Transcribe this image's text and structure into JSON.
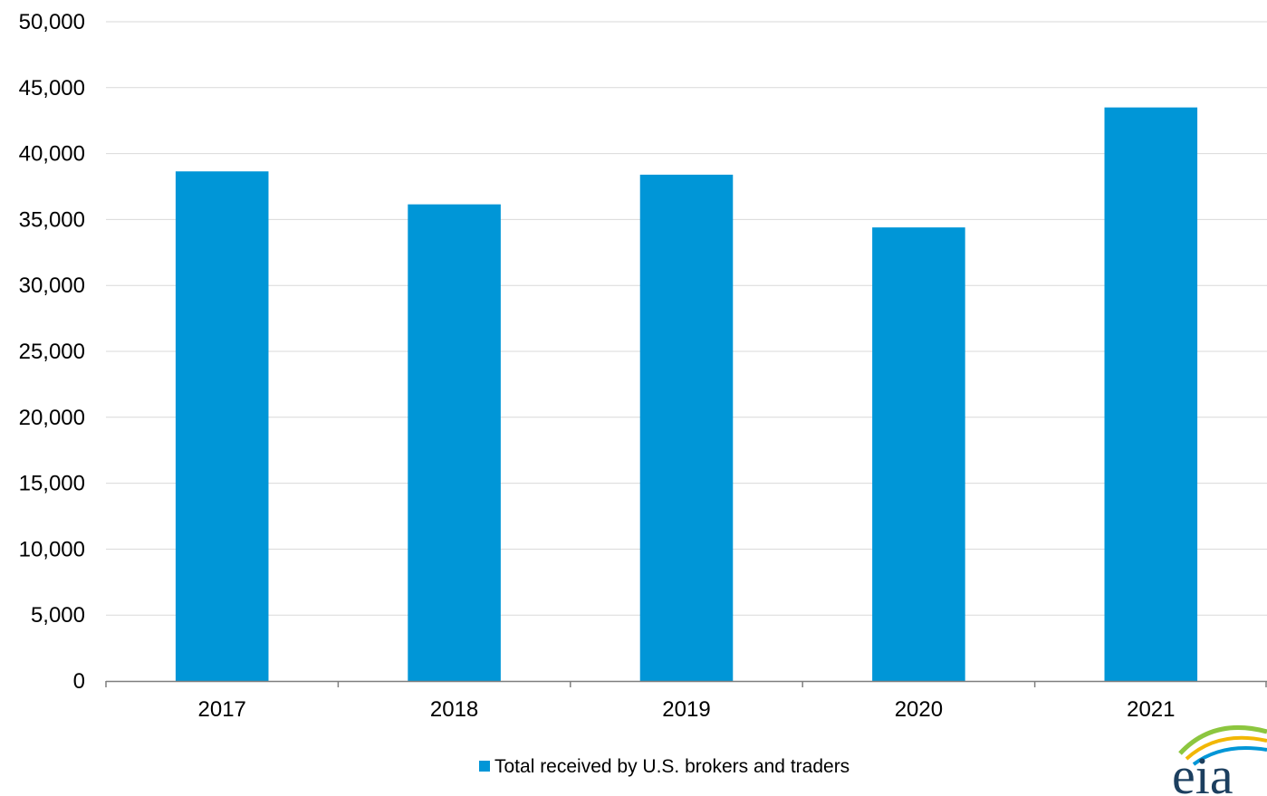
{
  "chart_data": {
    "type": "bar",
    "title": "",
    "xlabel": "",
    "ylabel": "",
    "categories": [
      "2017",
      "2018",
      "2019",
      "2020",
      "2021"
    ],
    "series": [
      {
        "name": "Total received by U.S. brokers and traders",
        "color": "#0096d7",
        "values": [
          38650,
          36150,
          38400,
          34400,
          43500
        ]
      }
    ],
    "ylim": [
      0,
      50000
    ],
    "y_ticks": [
      0,
      5000,
      10000,
      15000,
      20000,
      25000,
      30000,
      35000,
      40000,
      45000,
      50000
    ],
    "y_tick_labels": [
      "0",
      "5,000",
      "10,000",
      "15,000",
      "20,000",
      "25,000",
      "30,000",
      "35,000",
      "40,000",
      "45,000",
      "50,000"
    ],
    "grid": "horizontal",
    "legend_position": "bottom-center"
  },
  "logo": {
    "name": "eia-logo",
    "text": "eia",
    "colors": [
      "#8cc63f",
      "#f2b705",
      "#0096d7",
      "#1c3f5f"
    ]
  }
}
